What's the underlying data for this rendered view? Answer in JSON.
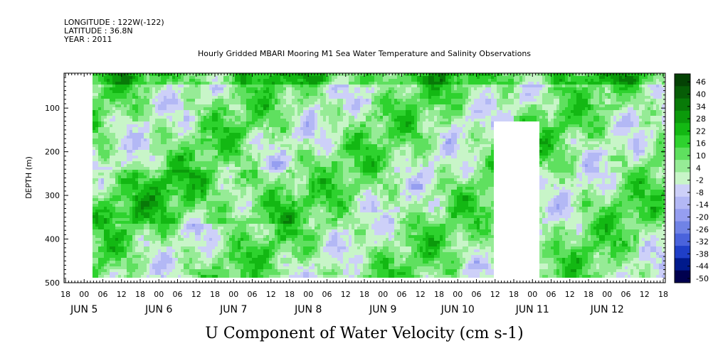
{
  "header": {
    "longitude": "LONGITUDE : 122W(-122)",
    "latitude": "LATITUDE : 36.8N",
    "year": "YEAR : 2011"
  },
  "chart_data": {
    "type": "heatmap",
    "title": "Hourly Gridded MBARI Mooring M1 Sea Water Temperature and Salinity Observations",
    "xlabel": "U Component of Water Velocity (cm s-1)",
    "ylabel": "DEPTH (m)",
    "x_start_hour": 18,
    "x_hour_step": 6,
    "x_hour_labels": [
      "18",
      "00",
      "06",
      "12",
      "18",
      "00",
      "06",
      "12",
      "18",
      "00",
      "06",
      "12",
      "18",
      "00",
      "06",
      "12",
      "18",
      "00",
      "06",
      "12",
      "18",
      "00",
      "06",
      "12",
      "18",
      "00",
      "06",
      "12",
      "18",
      "00",
      "06",
      "12",
      "18"
    ],
    "day_labels": [
      "JUN 5",
      "JUN 6",
      "JUN 7",
      "JUN 8",
      "JUN 9",
      "JUN 10",
      "JUN 11",
      "JUN 12"
    ],
    "y_ticks": [
      100,
      200,
      300,
      400,
      500
    ],
    "ylim": [
      500,
      20
    ],
    "data_depth_range": [
      20,
      485
    ],
    "colorbar": {
      "labels": [
        "46",
        "40",
        "34",
        "28",
        "22",
        "16",
        "10",
        "4",
        "-2",
        "-8",
        "-14",
        "-20",
        "-26",
        "-32",
        "-38",
        "-44",
        "-50"
      ],
      "range": [
        -50,
        49
      ],
      "colors": [
        "#00004f",
        "#001a8c",
        "#1f3fc8",
        "#4a63dc",
        "#7083e6",
        "#959ef0",
        "#b3b8f5",
        "#cdd0f8",
        "#c8f5c8",
        "#96eb96",
        "#5fe05f",
        "#2ed22e",
        "#13b813",
        "#0b9a0b",
        "#087a08",
        "#065d06",
        "#044204"
      ]
    }
  }
}
